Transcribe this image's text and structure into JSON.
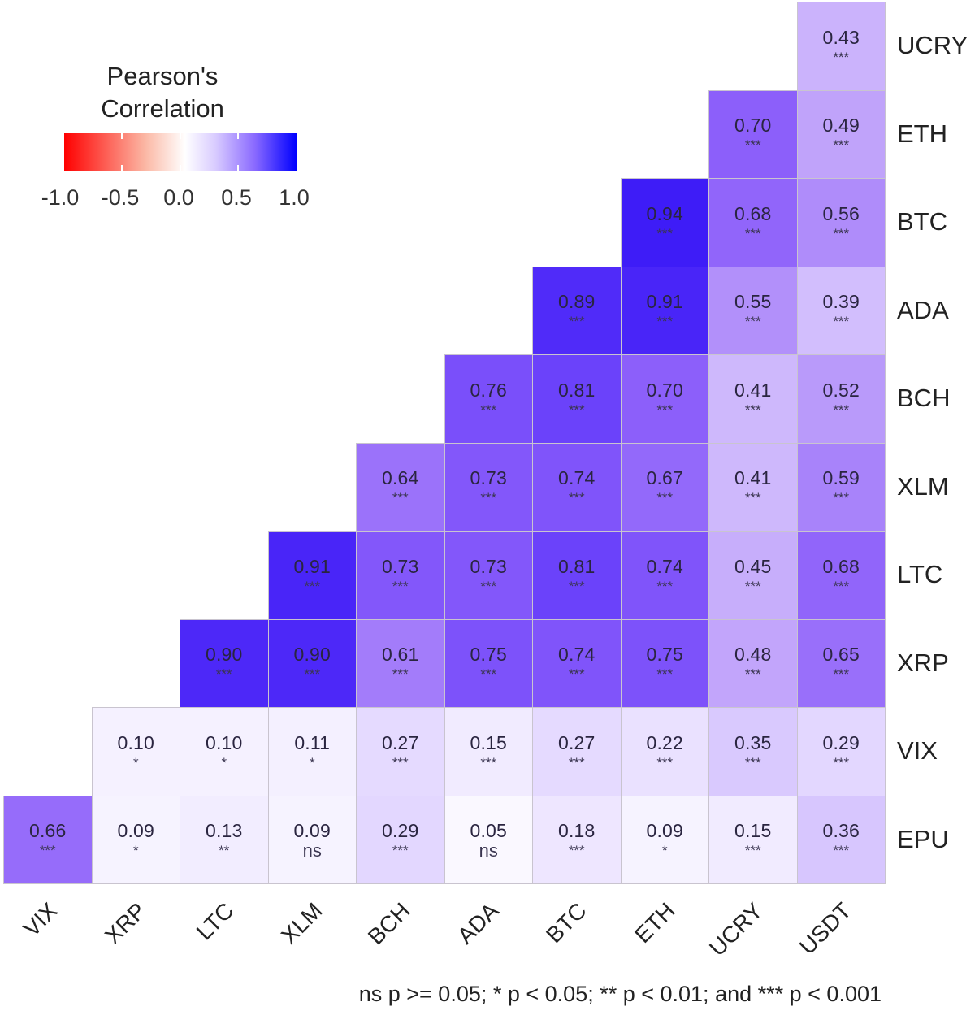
{
  "chart_data": {
    "type": "heatmap",
    "title": "",
    "xlabel": "",
    "ylabel": "",
    "legend": {
      "title_line1": "Pearson's",
      "title_line2": "Correlation",
      "ticks": [
        "-1.0",
        "-0.5",
        "0.0",
        "0.5",
        "1.0"
      ],
      "range": [
        -1.0,
        1.0
      ],
      "colors": {
        "low": "#ff0000",
        "mid": "#ffffff",
        "high": "#0000ff"
      },
      "position": "top-left"
    },
    "x_categories": [
      "VIX",
      "XRP",
      "LTC",
      "XLM",
      "BCH",
      "ADA",
      "BTC",
      "ETH",
      "UCRY",
      "USDT"
    ],
    "y_categories_top_to_bottom": [
      "UCRY",
      "ETH",
      "BTC",
      "ADA",
      "BCH",
      "XLM",
      "LTC",
      "XRP",
      "VIX",
      "EPU"
    ],
    "cells": [
      {
        "row": "UCRY",
        "col": "USDT",
        "value": 0.43,
        "sig": "***"
      },
      {
        "row": "ETH",
        "col": "UCRY",
        "value": 0.7,
        "sig": "***"
      },
      {
        "row": "ETH",
        "col": "USDT",
        "value": 0.49,
        "sig": "***"
      },
      {
        "row": "BTC",
        "col": "ETH",
        "value": 0.94,
        "sig": "***"
      },
      {
        "row": "BTC",
        "col": "UCRY",
        "value": 0.68,
        "sig": "***"
      },
      {
        "row": "BTC",
        "col": "USDT",
        "value": 0.56,
        "sig": "***"
      },
      {
        "row": "ADA",
        "col": "BTC",
        "value": 0.89,
        "sig": "***"
      },
      {
        "row": "ADA",
        "col": "ETH",
        "value": 0.91,
        "sig": "***"
      },
      {
        "row": "ADA",
        "col": "UCRY",
        "value": 0.55,
        "sig": "***"
      },
      {
        "row": "ADA",
        "col": "USDT",
        "value": 0.39,
        "sig": "***"
      },
      {
        "row": "BCH",
        "col": "ADA",
        "value": 0.76,
        "sig": "***"
      },
      {
        "row": "BCH",
        "col": "BTC",
        "value": 0.81,
        "sig": "***"
      },
      {
        "row": "BCH",
        "col": "ETH",
        "value": 0.7,
        "sig": "***"
      },
      {
        "row": "BCH",
        "col": "UCRY",
        "value": 0.41,
        "sig": "***"
      },
      {
        "row": "BCH",
        "col": "USDT",
        "value": 0.52,
        "sig": "***"
      },
      {
        "row": "XLM",
        "col": "BCH",
        "value": 0.64,
        "sig": "***"
      },
      {
        "row": "XLM",
        "col": "ADA",
        "value": 0.73,
        "sig": "***"
      },
      {
        "row": "XLM",
        "col": "BTC",
        "value": 0.74,
        "sig": "***"
      },
      {
        "row": "XLM",
        "col": "ETH",
        "value": 0.67,
        "sig": "***"
      },
      {
        "row": "XLM",
        "col": "UCRY",
        "value": 0.41,
        "sig": "***"
      },
      {
        "row": "XLM",
        "col": "USDT",
        "value": 0.59,
        "sig": "***"
      },
      {
        "row": "LTC",
        "col": "XLM",
        "value": 0.91,
        "sig": "***"
      },
      {
        "row": "LTC",
        "col": "BCH",
        "value": 0.73,
        "sig": "***"
      },
      {
        "row": "LTC",
        "col": "ADA",
        "value": 0.73,
        "sig": "***"
      },
      {
        "row": "LTC",
        "col": "BTC",
        "value": 0.81,
        "sig": "***"
      },
      {
        "row": "LTC",
        "col": "ETH",
        "value": 0.74,
        "sig": "***"
      },
      {
        "row": "LTC",
        "col": "UCRY",
        "value": 0.45,
        "sig": "***"
      },
      {
        "row": "LTC",
        "col": "USDT",
        "value": 0.68,
        "sig": "***"
      },
      {
        "row": "XRP",
        "col": "LTC",
        "value": 0.9,
        "sig": "***"
      },
      {
        "row": "XRP",
        "col": "XLM",
        "value": 0.9,
        "sig": "***"
      },
      {
        "row": "XRP",
        "col": "BCH",
        "value": 0.61,
        "sig": "***"
      },
      {
        "row": "XRP",
        "col": "ADA",
        "value": 0.75,
        "sig": "***"
      },
      {
        "row": "XRP",
        "col": "BTC",
        "value": 0.74,
        "sig": "***"
      },
      {
        "row": "XRP",
        "col": "ETH",
        "value": 0.75,
        "sig": "***"
      },
      {
        "row": "XRP",
        "col": "UCRY",
        "value": 0.48,
        "sig": "***"
      },
      {
        "row": "XRP",
        "col": "USDT",
        "value": 0.65,
        "sig": "***"
      },
      {
        "row": "VIX",
        "col": "XRP",
        "value": 0.1,
        "sig": "*"
      },
      {
        "row": "VIX",
        "col": "LTC",
        "value": 0.1,
        "sig": "*"
      },
      {
        "row": "VIX",
        "col": "XLM",
        "value": 0.11,
        "sig": "*"
      },
      {
        "row": "VIX",
        "col": "BCH",
        "value": 0.27,
        "sig": "***"
      },
      {
        "row": "VIX",
        "col": "ADA",
        "value": 0.15,
        "sig": "***"
      },
      {
        "row": "VIX",
        "col": "BTC",
        "value": 0.27,
        "sig": "***"
      },
      {
        "row": "VIX",
        "col": "ETH",
        "value": 0.22,
        "sig": "***"
      },
      {
        "row": "VIX",
        "col": "UCRY",
        "value": 0.35,
        "sig": "***"
      },
      {
        "row": "VIX",
        "col": "USDT",
        "value": 0.29,
        "sig": "***"
      },
      {
        "row": "EPU",
        "col": "VIX",
        "value": 0.66,
        "sig": "***"
      },
      {
        "row": "EPU",
        "col": "XRP",
        "value": 0.09,
        "sig": "*"
      },
      {
        "row": "EPU",
        "col": "LTC",
        "value": 0.13,
        "sig": "**"
      },
      {
        "row": "EPU",
        "col": "XLM",
        "value": 0.09,
        "sig": "ns"
      },
      {
        "row": "EPU",
        "col": "BCH",
        "value": 0.29,
        "sig": "***"
      },
      {
        "row": "EPU",
        "col": "ADA",
        "value": 0.05,
        "sig": "ns"
      },
      {
        "row": "EPU",
        "col": "BTC",
        "value": 0.18,
        "sig": "***"
      },
      {
        "row": "EPU",
        "col": "ETH",
        "value": 0.09,
        "sig": "*"
      },
      {
        "row": "EPU",
        "col": "UCRY",
        "value": 0.15,
        "sig": "***"
      },
      {
        "row": "EPU",
        "col": "USDT",
        "value": 0.36,
        "sig": "***"
      }
    ],
    "annotation": "ns p >= 0.05; * p < 0.05; ** p < 0.01; and *** p < 0.001",
    "grid": false
  }
}
